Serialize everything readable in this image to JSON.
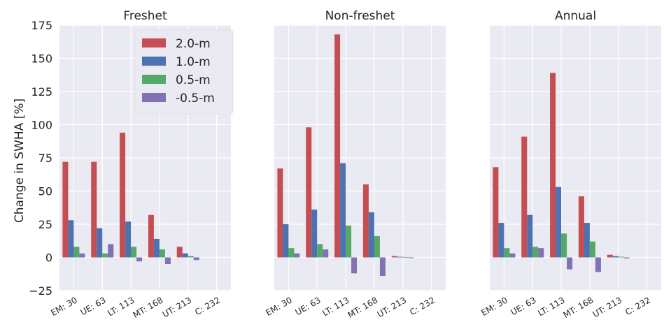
{
  "chart_data": {
    "type": "bar",
    "ylabel": "Change in SWHA [%]",
    "ylim": [
      -25,
      175
    ],
    "yticks": [
      -25,
      0,
      25,
      50,
      75,
      100,
      125,
      150,
      175
    ],
    "grid": true,
    "legend_position": "upper-right of first panel",
    "categories": [
      "EM: 30",
      "UE: 63",
      "LT: 113",
      "MT: 168",
      "UT: 213",
      "C: 232"
    ],
    "series_colors": {
      "2.0-m": "#c44e52",
      "1.0-m": "#4c72b0",
      "0.5-m": "#55a868",
      "-0.5-m": "#8172b2"
    },
    "panels": [
      {
        "title": "Freshet",
        "series": [
          {
            "name": "2.0-m",
            "values": [
              72,
              72,
              94,
              32,
              8,
              0
            ]
          },
          {
            "name": "1.0-m",
            "values": [
              28,
              22,
              27,
              14,
              3,
              0
            ]
          },
          {
            "name": "0.5-m",
            "values": [
              8,
              3,
              8,
              6,
              1,
              0
            ]
          },
          {
            "name": "-0.5-m",
            "values": [
              3,
              10,
              -3,
              -5,
              -2,
              0
            ]
          }
        ]
      },
      {
        "title": "Non-freshet",
        "series": [
          {
            "name": "2.0-m",
            "values": [
              67,
              98,
              168,
              55,
              1,
              0
            ]
          },
          {
            "name": "1.0-m",
            "values": [
              25,
              36,
              71,
              34,
              0.5,
              0
            ]
          },
          {
            "name": "0.5-m",
            "values": [
              7,
              10,
              24,
              16,
              0.3,
              0
            ]
          },
          {
            "name": "-0.5-m",
            "values": [
              3,
              6,
              -12,
              -14,
              -0.5,
              0
            ]
          }
        ]
      },
      {
        "title": "Annual",
        "series": [
          {
            "name": "2.0-m",
            "values": [
              68,
              91,
              139,
              46,
              2,
              0
            ]
          },
          {
            "name": "1.0-m",
            "values": [
              26,
              32,
              53,
              26,
              1,
              0
            ]
          },
          {
            "name": "0.5-m",
            "values": [
              7,
              8,
              18,
              12,
              0.5,
              0
            ]
          },
          {
            "name": "-0.5-m",
            "values": [
              3,
              7,
              -9,
              -11,
              -0.7,
              0
            ]
          }
        ]
      }
    ],
    "legend": [
      "2.0-m",
      "1.0-m",
      "0.5-m",
      "-0.5-m"
    ]
  }
}
